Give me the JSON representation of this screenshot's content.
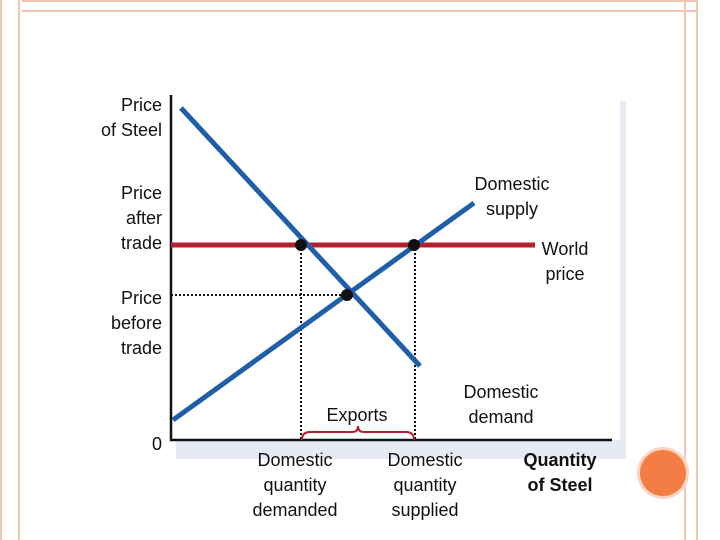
{
  "axes": {
    "y_label": [
      "Price",
      "of Steel"
    ],
    "x_label": [
      "Quantity",
      "of Steel"
    ],
    "origin": "0"
  },
  "price_labels": {
    "after_trade": [
      "Price",
      "after",
      "trade"
    ],
    "before_trade": [
      "Price",
      "before",
      "trade"
    ]
  },
  "curve_labels": {
    "domestic_supply": [
      "Domestic",
      "supply"
    ],
    "domestic_demand": [
      "Domestic",
      "demand"
    ],
    "world_price": [
      "World",
      "price"
    ]
  },
  "quantity_labels": {
    "demanded": [
      "Domestic",
      "quantity",
      "demanded"
    ],
    "supplied": [
      "Domestic",
      "quantity",
      "supplied"
    ]
  },
  "exports_label": "Exports",
  "colors": {
    "curve": "#1f5fa8",
    "world_price": "#b52030",
    "exports_brace": "#b52030",
    "accent_dot": "#f47c45",
    "frame": "#f2c5b5"
  }
}
